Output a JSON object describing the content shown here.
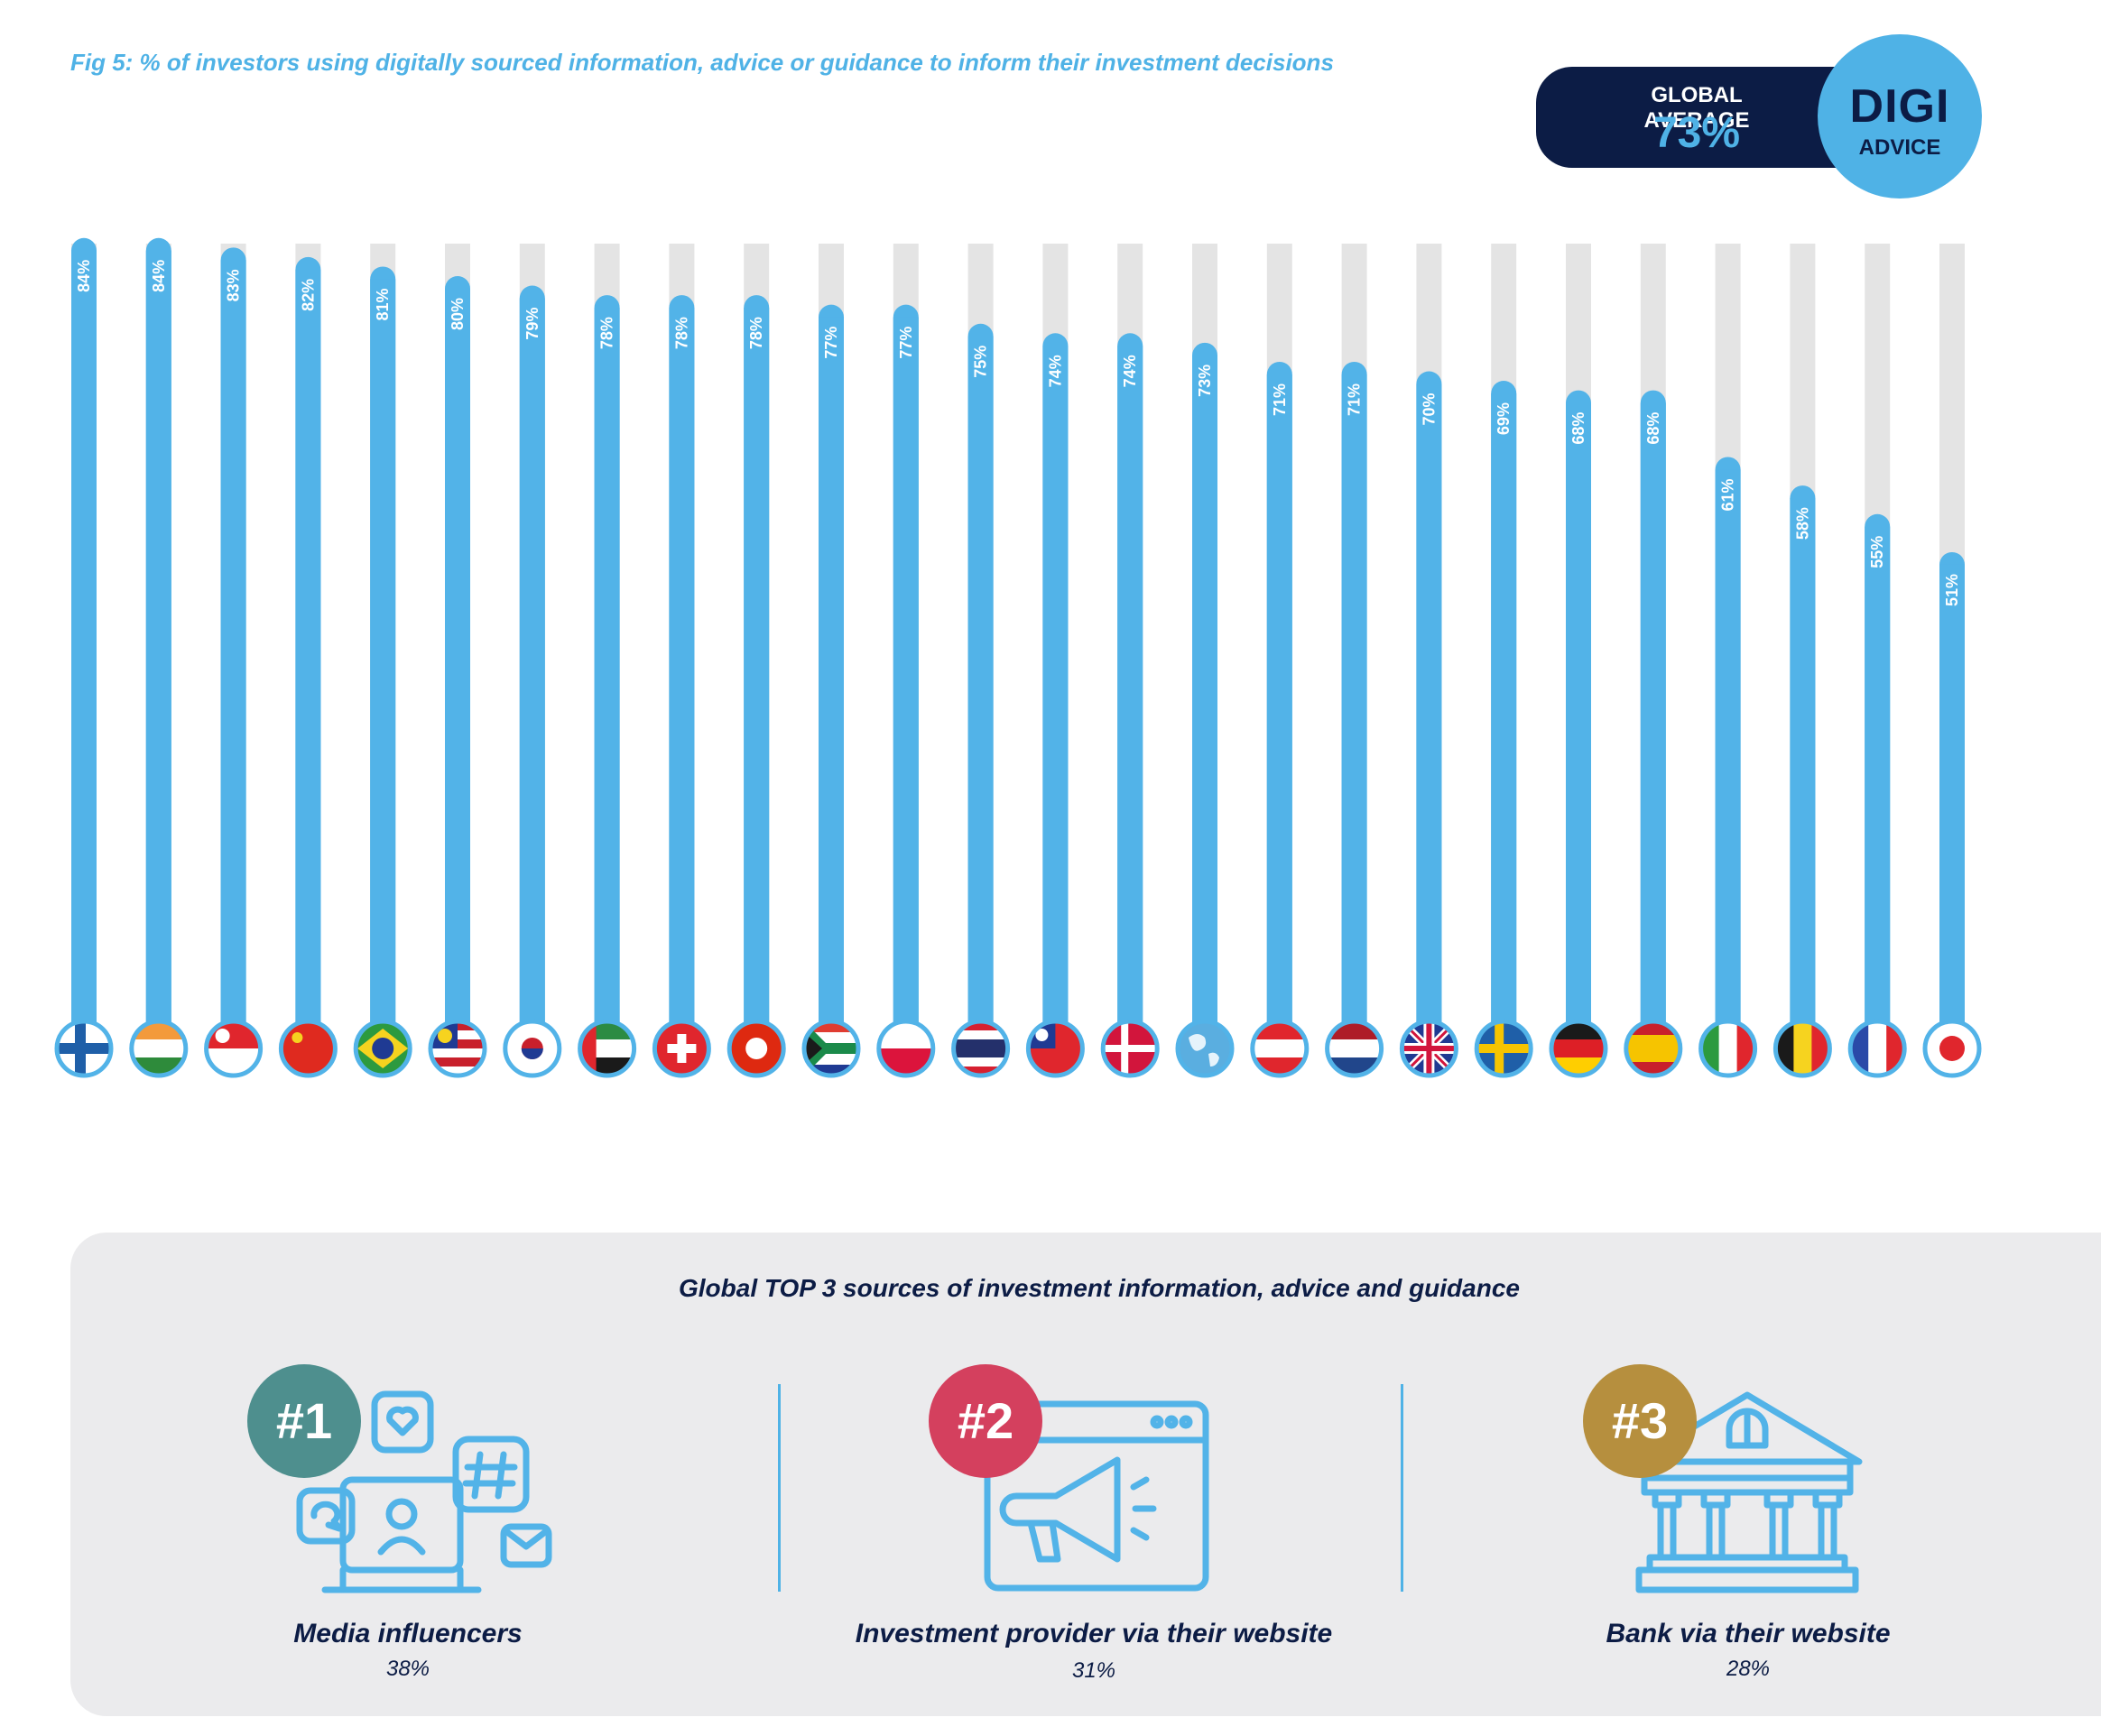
{
  "figure": {
    "title": "Fig 5: % of investors using digitally sourced information, advice or guidance to inform their investment decisions"
  },
  "global_average": {
    "label": "GLOBAL AVERAGE",
    "value": "73%"
  },
  "badge": {
    "main": "DIGI",
    "sub": "ADVICE"
  },
  "chart_data": {
    "type": "bar",
    "orientation": "vertical",
    "ylim": [
      0,
      100
    ],
    "grid": false,
    "categories": [
      "Finland",
      "India",
      "Singapore",
      "China",
      "Brazil",
      "Malaysia",
      "South Korea",
      "UAE",
      "Switzerland",
      "Hong Kong",
      "South Africa",
      "Poland",
      "Thailand",
      "Taiwan",
      "Denmark",
      "Global",
      "Austria",
      "Netherlands",
      "UK",
      "Sweden",
      "Germany",
      "Spain",
      "Italy",
      "Belgium",
      "France",
      "Japan"
    ],
    "values": [
      84,
      84,
      83,
      82,
      81,
      80,
      79,
      78,
      78,
      78,
      77,
      77,
      75,
      74,
      74,
      73,
      71,
      71,
      70,
      69,
      68,
      68,
      61,
      58,
      55,
      51
    ],
    "data_labels": [
      "84%",
      "84%",
      "83%",
      "82%",
      "81%",
      "80%",
      "79%",
      "78%",
      "78%",
      "78%",
      "77%",
      "77%",
      "75%",
      "74%",
      "74%",
      "73%",
      "71%",
      "71%",
      "70%",
      "69%",
      "68%",
      "68%",
      "61%",
      "58%",
      "55%",
      "51%"
    ],
    "colors": {
      "bar": "#52b3e8",
      "track": "#e4e4e4",
      "label": "#ffffff"
    },
    "flag_icons": [
      "finland-flag-icon",
      "india-flag-icon",
      "singapore-flag-icon",
      "china-flag-icon",
      "brazil-flag-icon",
      "malaysia-flag-icon",
      "south-korea-flag-icon",
      "uae-flag-icon",
      "switzerland-flag-icon",
      "hong-kong-flag-icon",
      "south-africa-flag-icon",
      "poland-flag-icon",
      "thailand-flag-icon",
      "taiwan-flag-icon",
      "denmark-flag-icon",
      "globe-icon",
      "austria-flag-icon",
      "netherlands-flag-icon",
      "uk-flag-icon",
      "sweden-flag-icon",
      "germany-flag-icon",
      "spain-flag-icon",
      "italy-flag-icon",
      "belgium-flag-icon",
      "france-flag-icon",
      "japan-flag-icon"
    ]
  },
  "top3": {
    "title": "Global TOP 3 sources of investment information, advice and guidance",
    "items": [
      {
        "rank": "#1",
        "label": "Media influencers",
        "value": "38%",
        "color": "#4e8f8e",
        "icon": "social-media-icon"
      },
      {
        "rank": "#2",
        "label": "Investment provider via their website",
        "value": "31%",
        "color": "#d4405e",
        "icon": "megaphone-browser-icon"
      },
      {
        "rank": "#3",
        "label": "Bank via their website",
        "value": "28%",
        "color": "#b68f3e",
        "icon": "bank-icon"
      }
    ]
  },
  "colors": {
    "accent": "#4fb2e6",
    "navy": "#0c1c45",
    "panel": "#ebebed"
  }
}
